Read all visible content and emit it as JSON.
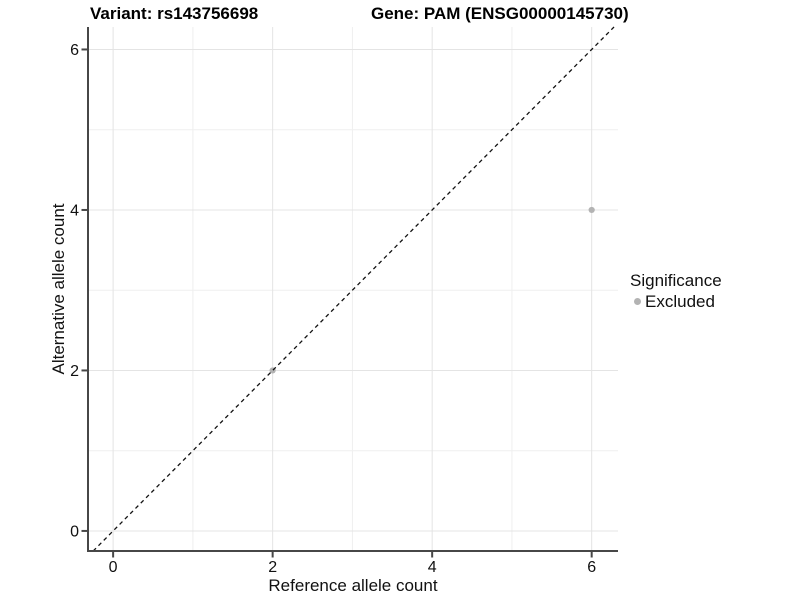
{
  "titles": {
    "left": "Variant: rs143756698",
    "right": "Gene: PAM (ENSG00000145730)"
  },
  "chart_data": {
    "type": "scatter",
    "title_left": "Variant: rs143756698",
    "title_right": "Gene: PAM (ENSG00000145730)",
    "xlabel": "Reference allele count",
    "ylabel": "Alternative allele count",
    "xlim": [
      -0.315,
      6.33
    ],
    "ylim": [
      -0.25,
      6.28
    ],
    "x_ticks": [
      0,
      2,
      4,
      6
    ],
    "y_ticks": [
      0,
      2,
      4,
      6
    ],
    "x_minor_ticks": [
      1,
      3,
      5
    ],
    "y_minor_ticks": [
      1,
      3,
      5
    ],
    "grid": true,
    "points": [
      {
        "x": 2,
        "y": 2,
        "series": "Excluded"
      },
      {
        "x": 6,
        "y": 4,
        "series": "Excluded"
      }
    ],
    "identity_line": {
      "slope": 1,
      "intercept": 0,
      "style": "dashed"
    },
    "legend": {
      "title": "Significance",
      "position": "right",
      "items": [
        {
          "label": "Excluded",
          "color": "#b3b3b3"
        }
      ]
    }
  },
  "style": {
    "background": "#ffffff",
    "point_color": "#b3b3b3",
    "axis_color": "#474747",
    "tick_label_color": "#111111",
    "grid_major_color": "#e4e4e4",
    "grid_minor_color": "#efefef",
    "identity_line_color": "#121212"
  }
}
